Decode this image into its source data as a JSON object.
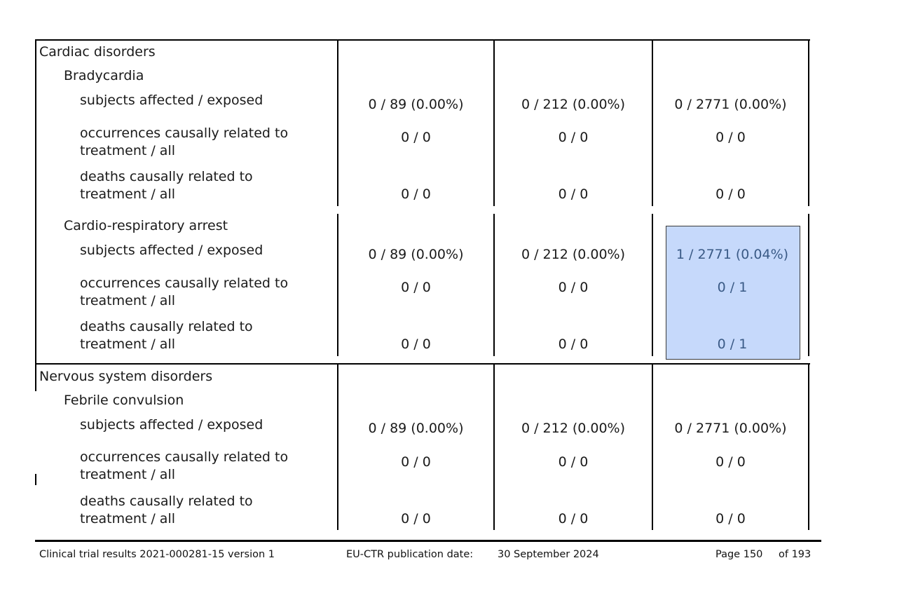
{
  "sections": [
    {
      "soc": "Cardiac disorders",
      "terms": [
        {
          "name": "Bradycardia",
          "rows": [
            {
              "label": "subjects affected / exposed",
              "values": [
                "0 / 89 (0.00%)",
                "0 / 212 (0.00%)",
                "0 / 2771 (0.00%)"
              ]
            },
            {
              "label_1": "occurrences causally related to",
              "label_2": "treatment / all",
              "values": [
                "0 / 0",
                "0 / 0",
                "0 / 0"
              ]
            },
            {
              "label_1": "deaths causally related to",
              "label_2": "treatment / all",
              "values": [
                "0 / 0",
                "0 / 0",
                "0 / 0"
              ]
            }
          ]
        },
        {
          "name": "Cardio-respiratory arrest",
          "rows": [
            {
              "label": "subjects affected / exposed",
              "values": [
                "0 / 89 (0.00%)",
                "0 / 212 (0.00%)",
                "1 / 2771 (0.04%)"
              ]
            },
            {
              "label_1": "occurrences causally related to",
              "label_2": "treatment / all",
              "values": [
                "0 / 0",
                "0 / 0",
                "0 / 1"
              ]
            },
            {
              "label_1": "deaths causally related to",
              "label_2": "treatment / all",
              "values": [
                "0 / 0",
                "0 / 0",
                "0 / 1"
              ]
            }
          ]
        }
      ]
    },
    {
      "soc": "Nervous system disorders",
      "terms": [
        {
          "name": "Febrile convulsion",
          "rows": [
            {
              "label": "subjects affected / exposed",
              "values": [
                "0 / 89 (0.00%)",
                "0 / 212 (0.00%)",
                "0 / 2771 (0.00%)"
              ]
            },
            {
              "label_1": "occurrences causally related to",
              "label_2": "treatment / all",
              "values": [
                "0 / 0",
                "0 / 0",
                "0 / 0"
              ]
            },
            {
              "label_1": "deaths causally related to",
              "label_2": "treatment / all",
              "values": [
                "0 / 0",
                "0 / 0",
                "0 / 0"
              ]
            }
          ]
        }
      ]
    }
  ],
  "footer": {
    "left": "Clinical trial results 2021-000281-15 version 1",
    "center_label": "EU-CTR publication date:",
    "center_date": "30 September 2024",
    "page": "Page 150",
    "of": "of 193"
  },
  "colors": {
    "highlight": "#c6d9fb",
    "highlight_text": "#3a5a86"
  }
}
